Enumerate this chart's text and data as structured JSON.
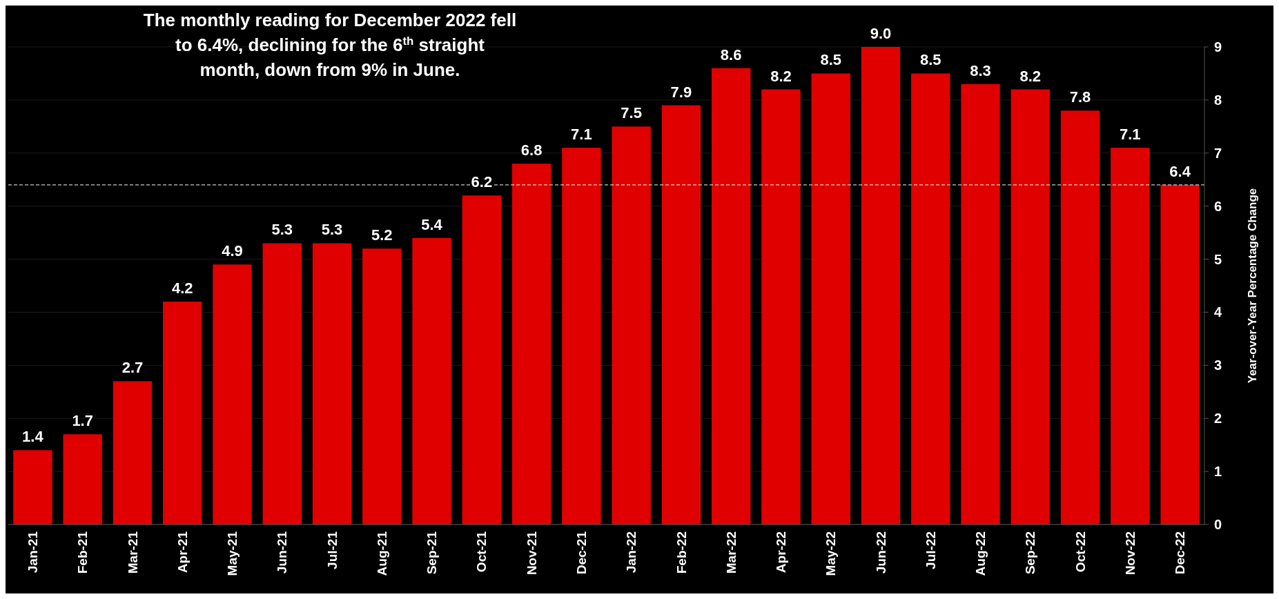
{
  "chart_data": {
    "type": "bar",
    "title": "The monthly reading for December 2022 fell to 6.4%, declining for the 6$^{th}$ straight month, down from 9% in June.",
    "categories": [
      "Jan-21",
      "Feb-21",
      "Mar-21",
      "Apr-21",
      "May-21",
      "Jun-21",
      "Jul-21",
      "Aug-21",
      "Sep-21",
      "Oct-21",
      "Nov-21",
      "Dec-21",
      "Jan-22",
      "Feb-22",
      "Mar-22",
      "Apr-22",
      "May-22",
      "Jun-22",
      "Jul-22",
      "Aug-22",
      "Sep-22",
      "Oct-22",
      "Nov-22",
      "Dec-22"
    ],
    "values": [
      1.4,
      1.7,
      2.7,
      4.2,
      4.9,
      5.3,
      5.3,
      5.2,
      5.4,
      6.2,
      6.8,
      7.1,
      7.5,
      7.9,
      8.6,
      8.2,
      8.5,
      9.0,
      8.5,
      8.3,
      8.2,
      7.8,
      7.1,
      6.4
    ],
    "value_labels": [
      "1.4",
      "1.7",
      "2.7",
      "4.2",
      "4.9",
      "5.3",
      "5.3",
      "5.2",
      "5.4",
      "6.2",
      "6.8",
      "7.1",
      "7.5",
      "7.9",
      "8.6",
      "8.2",
      "8.5",
      "9.0",
      "8.5",
      "8.3",
      "8.2",
      "7.8",
      "7.1",
      "6.4"
    ],
    "color": "#e00000",
    "ylabel": "Year-over-Year Percentage Change",
    "ylim": [
      0,
      9
    ],
    "yticks": [
      0,
      1,
      2,
      3,
      4,
      5,
      6,
      7,
      8,
      9
    ],
    "grid": "y",
    "ref_lines": [
      {
        "axis": "y",
        "value": 6.4,
        "color": "#ffffff",
        "line_style": "dashed"
      }
    ]
  }
}
